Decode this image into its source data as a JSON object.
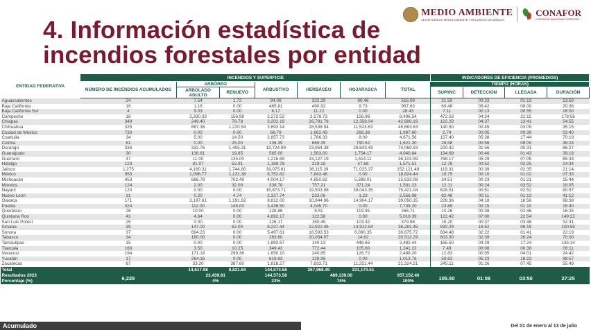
{
  "header": {
    "logo_main": "MEDIO AMBIENTE",
    "logo_sub": "SECRETARÍA DE MEDIO AMBIENTE Y RECURSOS NATURALES",
    "logo_conafor": "CONAFOR",
    "conafor_sub": "COMISIÓN NACIONAL FORESTAL"
  },
  "title": {
    "line1": "4. Información estadística de",
    "line2": "incendios forestales por entidad"
  },
  "table": {
    "h_group_left": "INCENDIOS Y SUPERFICIE",
    "h_group_right": "INDICADORES DE EFICIENCIA (PROMEDIOS)",
    "h_entidad": "ENTIDAD FEDERATIVA",
    "h_num": "NÚMERO DE INCENDIOS ACUMULADOS",
    "h_arboreo": "ARBÓREO",
    "h_arbolado": "ARBOLADO ADULTO",
    "h_renuevo": "RENUEVO",
    "h_arbustivo": "ARBUSTIVO",
    "h_herbaceo": "HERBÁCEO",
    "h_hojarasca": "HOJARASCA",
    "h_total": "TOTAL",
    "h_tiempo": "TIEMPO (HORAS)",
    "h_sup": "SUP/INC",
    "h_deteccion": "DETECCIÓN",
    "h_llegada": "LLEGADA",
    "h_duracion": "DURACIÓN",
    "rows": [
      [
        "Aguascalientes",
        "24",
        "7.54",
        "1.72",
        "94.08",
        "322.29",
        "90.46",
        "516.09",
        "21.50",
        "00:23",
        "01:13",
        "13:59"
      ],
      [
        "Baja California",
        "16",
        "1.16",
        "0.00",
        "465.81",
        "490.92",
        "9.73",
        "967.63",
        "60.48",
        "05:42",
        "08:00",
        "20:36"
      ],
      [
        "Baja California Sur",
        "4",
        "9.03",
        "0.00",
        "8.17",
        "11.22",
        "0.00",
        "28.43",
        "7.11",
        "00:13",
        "00:55",
        "16:00"
      ],
      [
        "Campeche",
        "18",
        "2,330.33",
        "156.98",
        "2,272.53",
        "3,579.73",
        "156.98",
        "8,496.54",
        "472.03",
        "04:24",
        "21:15",
        "178:56"
      ],
      [
        "Chiapas",
        "349",
        "249.40",
        "78.78",
        "3,202.19",
        "26,791.78",
        "12,358.04",
        "42,680.19",
        "122.29",
        "04:37",
        "13:41",
        "54:55"
      ],
      [
        "Chihuahua",
        "325",
        "687.38",
        "1,220.54",
        "3,693.14",
        "28,538.94",
        "11,523.63",
        "45,663.63",
        "140.50",
        "00:45",
        "03:09",
        "35:15"
      ],
      [
        "Ciudad de México",
        "730",
        "0.00",
        "0.00",
        "68.79",
        "1,662.43",
        "266.38",
        "1,997.60",
        "2.74",
        "00:05",
        "00:39",
        "02:40"
      ],
      [
        "Coahuila",
        "34",
        "5.00",
        "14.50",
        "2,857.73",
        "1,786.33",
        "8.00",
        "4,671.56",
        "137.40",
        "05:38",
        "17:44",
        "70:19"
      ],
      [
        "Colima",
        "61",
        "0.00",
        "25.00",
        "136.39",
        "669.39",
        "790.52",
        "1,621.30",
        "26.58",
        "00:56",
        "08:05",
        "38:24"
      ],
      [
        "Durango",
        "336",
        "332.76",
        "1,405.31",
        "19,724.99",
        "23,954.38",
        "28,643.49",
        "74,060.93",
        "220.42",
        "01:56",
        "05:31",
        "66:27"
      ],
      [
        "Guanajuato",
        "30",
        "138.81",
        "19.85",
        "565.00",
        "1,563.00",
        "1,754.17",
        "4,040.84",
        "134.69",
        "00:46",
        "01:43",
        "39:18"
      ],
      [
        "Guerrero",
        "47",
        "11.00",
        "135.00",
        "1,216.69",
        "33,127.19",
        "1,614.11",
        "36,103.99",
        "768.17",
        "05:29",
        "07:05",
        "85:34"
      ],
      [
        "Hidalgo",
        "123",
        "81.97",
        "52.91",
        "1,169.78",
        "219.18",
        "47.68",
        "1,571.51",
        "12.78",
        "00:52",
        "02:25",
        "14:34"
      ],
      [
        "Jalisco",
        "1,275",
        "4,160.31",
        "1,744.80",
        "39,075.61",
        "36,115.39",
        "71,025.37",
        "152,121.48",
        "119.31",
        "00:39",
        "02:35",
        "21:14"
      ],
      [
        "México",
        "953",
        "1,096.77",
        "1,131.38",
        "8,752.82",
        "7,843.46",
        "0.00",
        "18,824.44",
        "19.75",
        "00:10",
        "01:02",
        "07:33"
      ],
      [
        "Michoacán",
        "453",
        "686.79",
        "702.49",
        "4,004.17",
        "4,850.62",
        "5,389.01",
        "15,633.08",
        "34.51",
        "00:23",
        "01:21",
        "15:44"
      ],
      [
        "Morelos",
        "124",
        "2.00",
        "32.00",
        "338.78",
        "757.21",
        "371.24",
        "1,501.23",
        "12.11",
        "00:24",
        "03:52",
        "18:05"
      ],
      [
        "Nayarit",
        "120",
        "0.00",
        "0.00",
        "16,873.71",
        "19,503.98",
        "39,043.35",
        "75,421.04",
        "628.51",
        "00:51",
        "02:52",
        "80:57"
      ],
      [
        "Nuevo León",
        "31",
        "0.20",
        "4.74",
        "2,327.74",
        "223.06",
        "1.23",
        "2,556.98",
        "82.48",
        "00:11",
        "01:13",
        "41:12"
      ],
      [
        "Oaxaca",
        "171",
        "3,197.61",
        "1,191.62",
        "8,812.00",
        "10,944.96",
        "14,904.17",
        "39,050.35",
        "228.36",
        "04:18",
        "16:56",
        "68:38"
      ],
      [
        "Puebla",
        "324",
        "112.00",
        "145.00",
        "3,436.50",
        "4,045.70",
        "0.00",
        "7,739.20",
        "23.89",
        "00:15",
        "01:10",
        "15:40"
      ],
      [
        "Querétaro",
        "26",
        "10.00",
        "0.00",
        "128.86",
        "8.51",
        "119.35",
        "266.71",
        "10.26",
        "00:38",
        "02:46",
        "16:25"
      ],
      [
        "Quintana Roo",
        "41",
        "4.64",
        "0.00",
        "4,892.17",
        "122.58",
        "0.00",
        "5,019.39",
        "122.42",
        "07:00",
        "22:54",
        "149:22"
      ],
      [
        "San Luis Potosí",
        "25",
        "0.00",
        "0.00",
        "126.17",
        "150.49",
        "103.32",
        "379.98",
        "15.20",
        "00:37",
        "03:46",
        "32:31"
      ],
      [
        "Sinaloa",
        "39",
        "147.00",
        "62.00",
        "8,237.44",
        "12,922.06",
        "14,912.94",
        "36,281.45",
        "930.29",
        "16:52",
        "06:19",
        "100:55"
      ],
      [
        "Sonora",
        "37",
        "694.23",
        "0.00",
        "5,497.61",
        "18,593.53",
        "6,090.35",
        "30,875.72",
        "834.48",
        "02:22",
        "01:41",
        "22:19"
      ],
      [
        "Tabasco",
        "34",
        "180.00",
        "0.00",
        "263.60",
        "20,054.07",
        "14.62",
        "20,512.29",
        "603.30",
        "02:39",
        "26:24",
        "70:00"
      ],
      [
        "Tamaulipas",
        "15",
        "0.00",
        "0.00",
        "1,893.67",
        "140.13",
        "448.65",
        "2,482.44",
        "165.50",
        "04:29",
        "17:24",
        "135:14"
      ],
      [
        "Tlaxcala",
        "166",
        "3.50",
        "10.25",
        "349.43",
        "772.44",
        "105.60",
        "1,241.22",
        "7.48",
        "00:08",
        "00:38",
        "06:11"
      ],
      [
        "Veracruz",
        "194",
        "171.18",
        "299.36",
        "1,650.10",
        "240.85",
        "126.72",
        "2,488.20",
        "12.83",
        "00:55",
        "04:01",
        "24:42"
      ],
      [
        "Yucatán",
        "17",
        "264.16",
        "0.00",
        "619.63",
        "129.96",
        "0.00",
        "1,013.76",
        "59.63",
        "05:23",
        "18:23",
        "88:57"
      ],
      [
        "Zacatecas",
        "87",
        "33.20",
        "387.60",
        "1,818.27",
        "7,833.71",
        "11,251.44",
        "21,324.21",
        "245.11",
        "01:26",
        "07:45",
        "55:49"
      ]
    ],
    "total_label": "Total",
    "total_arbolado": "14,617.98",
    "total_renuevo": "8,821.84",
    "total_arbustivo": "144,573.58",
    "total_herbaceo": "267,968.49",
    "total_hojarasca": "221,170.51",
    "resultados_label": "Resultados 2023",
    "porcentaje_label": "Porcentaje (%)",
    "res_num": "6,229",
    "res_arboreo": "23,439.81",
    "pct_arboreo": "4%",
    "res_arbustivo": "144,573.58",
    "pct_arbustivo": "22%",
    "res_herb_hoj": "489,139.00",
    "pct_herb_hoj": "74%",
    "res_total": "657,152.40",
    "pct_total": "100%",
    "res_sup": "105.50",
    "res_deteccion": "01:08",
    "res_llegada": "03:50",
    "res_duracion": "27:25"
  },
  "footer": {
    "acumulado": "Acumulado",
    "period": "Del 01 de enero al 13 de julio"
  }
}
